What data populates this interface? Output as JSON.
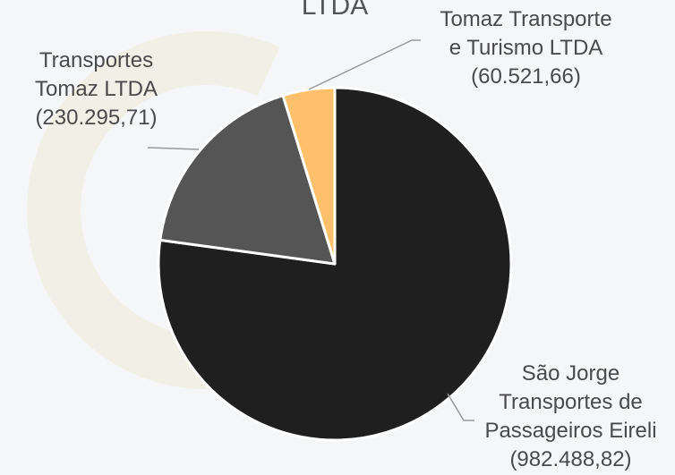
{
  "chart_data": {
    "type": "pie",
    "title": "LTDA",
    "categories": [
      "São Jorge Transportes de Passageiros Eireli",
      "Transportes Tomaz LTDA",
      "Tomaz Transporte e Turismo LTDA"
    ],
    "values": [
      982488.82,
      230295.71,
      60521.66
    ],
    "value_labels": [
      "(982.488,82)",
      "(230.295,71)",
      "(60.521,66)"
    ],
    "colors": [
      "#1f1f1f",
      "#555555",
      "#ffc06b"
    ]
  }
}
